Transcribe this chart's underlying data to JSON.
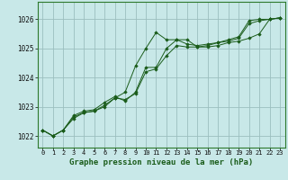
{
  "title": "Graphe pression niveau de la mer (hPa)",
  "bg_color": "#c8e8e8",
  "plot_bg_color": "#c8e8e8",
  "grid_color": "#9bbfbf",
  "line_color": "#1a5c1a",
  "marker_color": "#1a5c1a",
  "border_color": "#2d7a2d",
  "xlim": [
    -0.5,
    23.5
  ],
  "ylim": [
    1021.6,
    1026.6
  ],
  "yticks": [
    1022,
    1023,
    1024,
    1025,
    1026
  ],
  "xticks": [
    0,
    1,
    2,
    3,
    4,
    5,
    6,
    7,
    8,
    9,
    10,
    11,
    12,
    13,
    14,
    15,
    16,
    17,
    18,
    19,
    20,
    21,
    22,
    23
  ],
  "series1": [
    1022.2,
    1022.0,
    1022.2,
    1022.6,
    1022.8,
    1022.85,
    1023.0,
    1023.3,
    1023.5,
    1024.4,
    1025.0,
    1025.55,
    1025.3,
    1025.3,
    1025.3,
    1025.05,
    1025.05,
    1025.1,
    1025.2,
    1025.25,
    1025.35,
    1025.5,
    1026.0,
    1026.05
  ],
  "series2": [
    1022.2,
    1022.0,
    1022.2,
    1022.7,
    1022.85,
    1022.9,
    1023.15,
    1023.35,
    1023.2,
    1023.5,
    1024.35,
    1024.35,
    1025.0,
    1025.3,
    1025.15,
    1025.1,
    1025.15,
    1025.2,
    1025.3,
    1025.4,
    1025.95,
    1026.0,
    1026.0,
    1026.05
  ],
  "series3": [
    1022.2,
    1022.0,
    1022.2,
    1022.65,
    1022.8,
    1022.85,
    1023.05,
    1023.3,
    1023.25,
    1023.45,
    1024.2,
    1024.3,
    1024.75,
    1025.1,
    1025.05,
    1025.05,
    1025.1,
    1025.2,
    1025.25,
    1025.35,
    1025.85,
    1025.95,
    1026.0,
    1026.05
  ],
  "title_fontsize": 6.5,
  "tick_fontsize": 5.0,
  "ytick_fontsize": 5.5
}
